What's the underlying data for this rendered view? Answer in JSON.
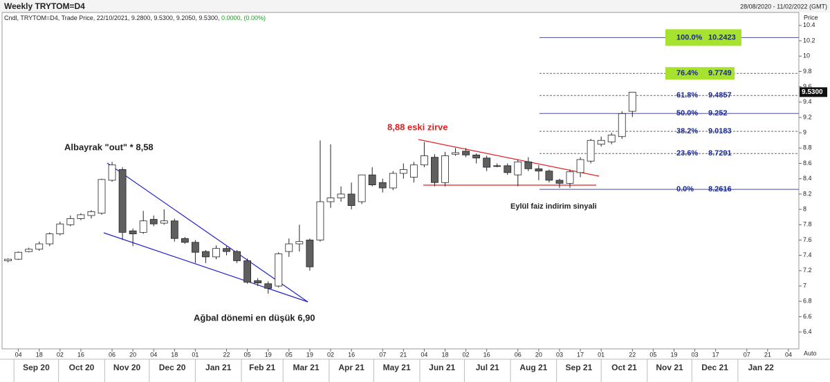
{
  "chart_data": {
    "type": "candlestick",
    "title": "Weekly TRYTOM=D4",
    "date_range": "28/08/2020 - 11/02/2022 (GMT)",
    "info_line": "Cndl, TRYTOM=D4, Trade Price, 22/10/2021, 9.2800, 9.5300, 9.2050, 9.5300, ",
    "info_change": "0.0000, (0.00%)",
    "y_axis_label": "Price",
    "scale_mode": "Auto",
    "up_color": "#ffffff",
    "down_color": "#5f5f5f",
    "x": [
      "2020-08-28",
      "2020-09-04",
      "2020-09-11",
      "2020-09-18",
      "2020-09-25",
      "2020-10-02",
      "2020-10-09",
      "2020-10-16",
      "2020-10-23",
      "2020-10-30",
      "2020-11-06",
      "2020-11-13",
      "2020-11-20",
      "2020-11-27",
      "2020-12-04",
      "2020-12-11",
      "2020-12-18",
      "2020-12-25",
      "2021-01-01",
      "2021-01-08",
      "2021-01-15",
      "2021-01-22",
      "2021-01-29",
      "2021-02-05",
      "2021-02-12",
      "2021-02-19",
      "2021-02-26",
      "2021-03-05",
      "2021-03-12",
      "2021-03-19",
      "2021-03-26",
      "2021-04-02",
      "2021-04-09",
      "2021-04-16",
      "2021-04-23",
      "2021-04-30",
      "2021-05-07",
      "2021-05-14",
      "2021-05-21",
      "2021-05-28",
      "2021-06-04",
      "2021-06-11",
      "2021-06-18",
      "2021-06-25",
      "2021-07-02",
      "2021-07-09",
      "2021-07-16",
      "2021-07-23",
      "2021-07-30",
      "2021-08-06",
      "2021-08-13",
      "2021-08-20",
      "2021-08-27",
      "2021-09-03",
      "2021-09-10",
      "2021-09-17",
      "2021-09-24",
      "2021-10-01",
      "2021-10-08",
      "2021-10-15",
      "2021-10-22"
    ],
    "open": [
      7.33,
      7.35,
      7.45,
      7.48,
      7.55,
      7.68,
      7.8,
      7.88,
      7.92,
      7.95,
      8.38,
      8.52,
      7.72,
      7.7,
      7.87,
      7.82,
      7.85,
      7.62,
      7.57,
      7.45,
      7.38,
      7.49,
      7.45,
      7.33,
      7.07,
      7.03,
      7.0,
      7.45,
      7.55,
      7.6,
      7.6,
      8.1,
      8.15,
      8.2,
      8.1,
      8.45,
      8.35,
      8.28,
      8.47,
      8.42,
      8.58,
      8.68,
      8.35,
      8.72,
      8.76,
      8.71,
      8.67,
      8.57,
      8.57,
      8.45,
      8.62,
      8.53,
      8.5,
      8.38,
      8.34,
      8.48,
      8.63,
      8.85,
      8.88,
      8.95,
      9.28
    ],
    "high": [
      7.36,
      7.45,
      7.5,
      7.58,
      7.7,
      7.84,
      7.92,
      7.95,
      7.99,
      8.4,
      8.62,
      8.55,
      7.75,
      7.98,
      7.92,
      8.0,
      7.88,
      7.64,
      7.6,
      7.47,
      7.53,
      7.52,
      7.47,
      7.36,
      7.1,
      7.06,
      7.44,
      7.62,
      7.8,
      7.62,
      8.9,
      8.85,
      8.3,
      8.35,
      8.45,
      8.55,
      8.4,
      8.5,
      8.6,
      8.62,
      8.88,
      8.72,
      8.75,
      8.8,
      8.8,
      8.73,
      8.7,
      8.6,
      8.6,
      8.65,
      8.68,
      8.58,
      8.52,
      8.4,
      8.52,
      8.68,
      8.92,
      8.95,
      9.0,
      9.28,
      9.53
    ],
    "low": [
      7.31,
      7.34,
      7.44,
      7.46,
      7.52,
      7.66,
      7.78,
      7.86,
      7.88,
      7.93,
      8.36,
      7.6,
      7.52,
      7.68,
      7.78,
      7.8,
      7.58,
      7.55,
      7.3,
      7.3,
      7.35,
      7.4,
      7.3,
      7.03,
      7.0,
      6.9,
      6.98,
      7.38,
      7.45,
      7.2,
      7.58,
      8.02,
      8.1,
      8.0,
      8.07,
      8.3,
      8.22,
      8.25,
      8.4,
      8.35,
      8.55,
      8.3,
      8.3,
      8.7,
      8.68,
      8.6,
      8.5,
      8.55,
      8.45,
      8.3,
      8.5,
      8.38,
      8.35,
      8.28,
      8.28,
      8.42,
      8.6,
      8.82,
      8.85,
      8.92,
      9.205
    ],
    "close": [
      7.35,
      7.44,
      7.48,
      7.55,
      7.68,
      7.81,
      7.88,
      7.93,
      7.97,
      8.39,
      8.58,
      7.7,
      7.68,
      7.85,
      7.81,
      7.85,
      7.62,
      7.57,
      7.44,
      7.38,
      7.49,
      7.45,
      7.33,
      7.05,
      7.04,
      6.97,
      7.42,
      7.55,
      7.58,
      7.25,
      8.1,
      8.15,
      8.2,
      8.05,
      8.45,
      8.32,
      8.28,
      8.47,
      8.52,
      8.58,
      8.7,
      8.35,
      8.7,
      8.74,
      8.71,
      8.67,
      8.55,
      8.56,
      8.48,
      8.62,
      8.53,
      8.5,
      8.38,
      8.34,
      8.49,
      8.65,
      8.9,
      8.9,
      8.97,
      9.25,
      9.53
    ],
    "xlim": [
      "2020-08-24",
      "2022-02-11"
    ],
    "ylim": [
      6.18,
      10.57
    ],
    "yticks": [
      6.4,
      6.6,
      6.8,
      7,
      7.2,
      7.4,
      7.6,
      7.8,
      8,
      8.2,
      8.4,
      8.6,
      8.8,
      9,
      9.2,
      9.4,
      9.6,
      9.8,
      10,
      10.2,
      10.4
    ],
    "xticks": [
      {
        "value": "2020-09-04",
        "label": "04"
      },
      {
        "value": "2020-09-18",
        "label": "18"
      },
      {
        "value": "2020-10-02",
        "label": "02"
      },
      {
        "value": "2020-10-16",
        "label": "16"
      },
      {
        "value": "2020-11-06",
        "label": "06"
      },
      {
        "value": "2020-11-20",
        "label": "20"
      },
      {
        "value": "2020-12-04",
        "label": "04"
      },
      {
        "value": "2020-12-18",
        "label": "18"
      },
      {
        "value": "2021-01-01",
        "label": "01"
      },
      {
        "value": "2021-01-22",
        "label": "22"
      },
      {
        "value": "2021-02-05",
        "label": "05"
      },
      {
        "value": "2021-02-19",
        "label": "19"
      },
      {
        "value": "2021-03-05",
        "label": "05"
      },
      {
        "value": "2021-03-19",
        "label": "19"
      },
      {
        "value": "2021-04-02",
        "label": "02"
      },
      {
        "value": "2021-04-16",
        "label": "16"
      },
      {
        "value": "2021-05-07",
        "label": "07"
      },
      {
        "value": "2021-05-21",
        "label": "21"
      },
      {
        "value": "2021-06-04",
        "label": "04"
      },
      {
        "value": "2021-06-18",
        "label": "18"
      },
      {
        "value": "2021-07-02",
        "label": "02"
      },
      {
        "value": "2021-07-16",
        "label": "16"
      },
      {
        "value": "2021-08-06",
        "label": "06"
      },
      {
        "value": "2021-08-20",
        "label": "20"
      },
      {
        "value": "2021-09-03",
        "label": "03"
      },
      {
        "value": "2021-09-17",
        "label": "17"
      },
      {
        "value": "2021-10-01",
        "label": "01"
      },
      {
        "value": "2021-10-22",
        "label": "22"
      },
      {
        "value": "2021-11-05",
        "label": "05"
      },
      {
        "value": "2021-11-19",
        "label": "19"
      },
      {
        "value": "2021-12-03",
        "label": "03"
      },
      {
        "value": "2021-12-17",
        "label": "17"
      },
      {
        "value": "2022-01-07",
        "label": "07"
      },
      {
        "value": "2022-01-21",
        "label": "21"
      },
      {
        "value": "2022-02-04",
        "label": "04"
      }
    ],
    "month_ticks": [
      {
        "value": "2020-09",
        "label": "Sep 20"
      },
      {
        "value": "2020-10",
        "label": "Oct 20"
      },
      {
        "value": "2020-11",
        "label": "Nov 20"
      },
      {
        "value": "2020-12",
        "label": "Dec 20"
      },
      {
        "value": "2021-01",
        "label": "Jan 21"
      },
      {
        "value": "2021-02",
        "label": "Feb 21"
      },
      {
        "value": "2021-03",
        "label": "Mar 21"
      },
      {
        "value": "2021-04",
        "label": "Apr 21"
      },
      {
        "value": "2021-05",
        "label": "May 21"
      },
      {
        "value": "2021-06",
        "label": "Jun 21"
      },
      {
        "value": "2021-07",
        "label": "Jul 21"
      },
      {
        "value": "2021-08",
        "label": "Aug 21"
      },
      {
        "value": "2021-09",
        "label": "Sep 21"
      },
      {
        "value": "2021-10",
        "label": "Oct 21"
      },
      {
        "value": "2021-11",
        "label": "Nov 21"
      },
      {
        "value": "2021-12",
        "label": "Dec 21"
      },
      {
        "value": "2022-01",
        "label": "Jan 22"
      }
    ],
    "last_price": {
      "value": 9.53,
      "label": "9.5300"
    },
    "fib_levels": [
      {
        "label": "100.0%",
        "value": 10.2423,
        "style": "solid",
        "box": "#a6e22e"
      },
      {
        "label": "76.4%",
        "value": 9.7749,
        "style": "dashed",
        "box": "#a6e22e"
      },
      {
        "label": "61.8%",
        "value": 9.4857,
        "style": "dashed"
      },
      {
        "label": "50.0%",
        "value": 9.252,
        "style": "solid"
      },
      {
        "label": "38.2%",
        "value": 9.0183,
        "style": "dashed"
      },
      {
        "label": "23.6%",
        "value": 8.7291,
        "style": "dashed"
      },
      {
        "label": "0.0%",
        "value": 8.2616,
        "style": "solid"
      }
    ],
    "annotations": [
      "Albayrak \"out\" * 8,58",
      "Ağbal dönemi en düşük 6,90",
      "8,88 eski zirve",
      "Eylül faiz indirim sinyali"
    ]
  }
}
